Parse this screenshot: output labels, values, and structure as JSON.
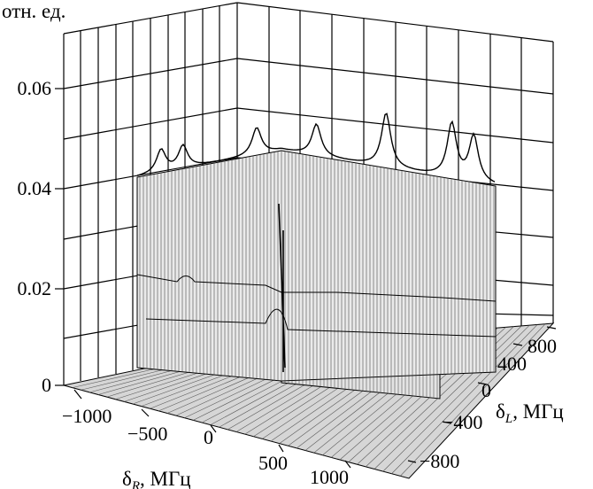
{
  "chart_data": {
    "type": "surface-3d",
    "z_unit_label": "отн. ед.",
    "z_ticks": [
      "0",
      "0.02",
      "0.04",
      "0.06"
    ],
    "z_range": [
      0,
      0.07
    ],
    "x_axis": {
      "label_symbol": "δ",
      "label_subscript": "R",
      "label_unit": ", МГц",
      "ticks": [
        "−1000",
        "−500",
        "0",
        "500",
        "1000"
      ],
      "range": [
        -1200,
        1200
      ]
    },
    "y_axis": {
      "label_symbol": "δ",
      "label_subscript": "L",
      "label_unit": ", МГц",
      "ticks": [
        "−800",
        "−400",
        "0",
        "400",
        "800"
      ],
      "range": [
        -1000,
        1000
      ]
    },
    "grid": true,
    "surface_features": {
      "ridge_along_dR": {
        "at_dL": 0,
        "dR_span": [
          -700,
          1100
        ],
        "height": 0.041
      },
      "ridge_along_dL": {
        "at_dR": 400,
        "dL_span": [
          -200,
          1000
        ],
        "height": 0.035
      },
      "peaks_on_edge_dL_min": [
        {
          "dR": -580,
          "height": 0.046
        },
        {
          "dR": -470,
          "height": 0.046
        },
        {
          "dR": -100,
          "height": 0.047
        },
        {
          "dR": 200,
          "height": 0.048
        },
        {
          "dR": 550,
          "height": 0.053
        },
        {
          "dR": 880,
          "height": 0.053
        },
        {
          "dR": 990,
          "height": 0.051
        }
      ]
    }
  }
}
